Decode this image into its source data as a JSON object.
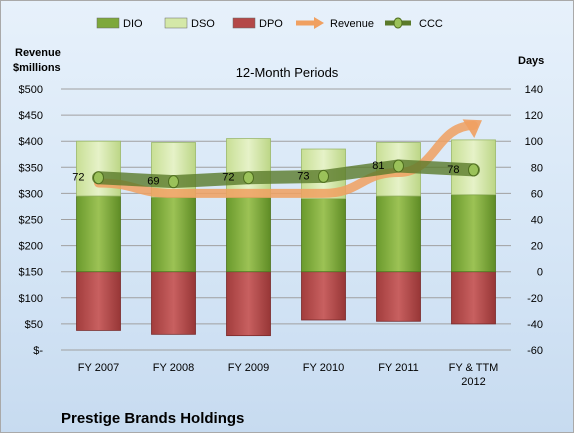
{
  "chart_data": {
    "type": "bar",
    "subtitle": "12-Month Periods",
    "company": "Prestige Brands Holdings",
    "left_axis": {
      "title_line1": "Revenue",
      "title_line2": "$millions",
      "ticks": [
        "$-",
        "$50",
        "$100",
        "$150",
        "$200",
        "$250",
        "$300",
        "$350",
        "$400",
        "$450",
        "$500"
      ],
      "range": [
        0,
        500
      ]
    },
    "right_axis": {
      "title": "Days",
      "ticks": [
        "-60",
        "-40",
        "-20",
        "0",
        "20",
        "40",
        "60",
        "80",
        "100",
        "120",
        "140"
      ],
      "range": [
        -60,
        140
      ]
    },
    "categories": [
      [
        "FY 2007"
      ],
      [
        "FY 2008"
      ],
      [
        "FY 2009"
      ],
      [
        "FY 2010"
      ],
      [
        "FY 2011"
      ],
      [
        "FY & TTM",
        "2012"
      ]
    ],
    "legend": [
      "DIO",
      "DSO",
      "DPO",
      "Revenue",
      "CCC"
    ],
    "colors": {
      "DIO": "#7ea83b",
      "DSO": "#d4e8a8",
      "DPO": "#b44848",
      "Revenue": "#f0a060",
      "CCC": "#5a7a2a",
      "gridline": "#a0a0a0"
    },
    "series": [
      {
        "name": "DIO",
        "axis": "days",
        "values": [
          58,
          57,
          57,
          56,
          58,
          59
        ]
      },
      {
        "name": "DSO",
        "axis": "days",
        "values": [
          42,
          42,
          45,
          38,
          41,
          42
        ]
      },
      {
        "name": "DPO",
        "axis": "days",
        "values": [
          -45,
          -48,
          -49,
          -37,
          -38,
          -40
        ]
      },
      {
        "name": "Revenue",
        "axis": "revenue",
        "values": [
          320,
          300,
          300,
          300,
          340,
          430
        ]
      },
      {
        "name": "CCC",
        "axis": "days",
        "values": [
          72,
          69,
          72,
          73,
          81,
          78
        ]
      }
    ],
    "ccc_labels": [
      "72",
      "69",
      "72",
      "73",
      "81",
      "78"
    ],
    "grid": true,
    "legend_position": "top"
  }
}
